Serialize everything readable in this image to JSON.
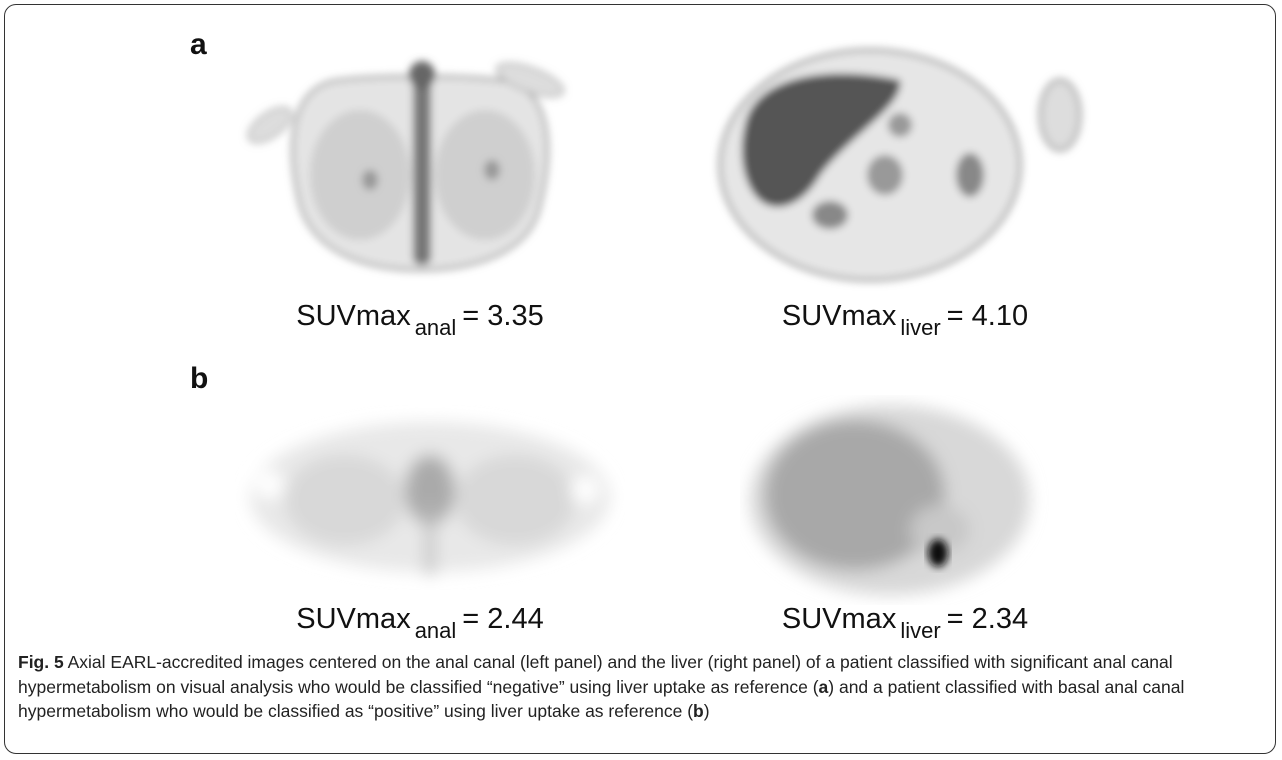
{
  "figure": {
    "panels": [
      {
        "label": "a",
        "images": [
          {
            "main": "SUVmax",
            "sub": "anal",
            "rest": "= 3.35"
          },
          {
            "main": "SUVmax",
            "sub": "liver",
            "rest": "= 4.10"
          }
        ]
      },
      {
        "label": "b",
        "images": [
          {
            "main": "SUVmax",
            "sub": "anal",
            "rest": "= 2.44"
          },
          {
            "main": "SUVmax",
            "sub": "liver",
            "rest": "= 2.34"
          }
        ]
      }
    ],
    "caption": {
      "label": "Fig. 5",
      "parts": [
        " Axial EARL-accredited images centered on the anal canal (left panel) and the liver (right panel) of a patient classified with significant anal canal hypermetabolism on visual analysis who would be classified “negative” using liver uptake as reference (",
        "a",
        ") and a patient classified with basal anal canal hypermetabolism who would be classified as “positive” using liver uptake as reference (",
        "b",
        ")"
      ]
    }
  }
}
